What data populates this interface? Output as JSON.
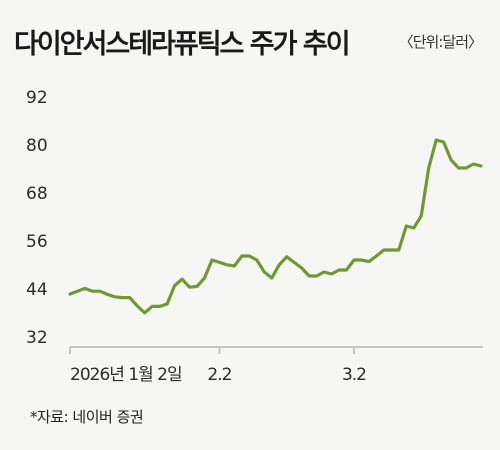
{
  "header": {
    "title": "다이안서스테라퓨틱스 주가 추이",
    "unit": "〈단위:달러〉"
  },
  "footer": {
    "source": "*자료: 네이버 증권"
  },
  "colors": {
    "line": "#6e9a34",
    "axis": "#c7c7c2",
    "text": "#2b2b2b"
  },
  "chart_data": {
    "type": "line",
    "title": "다이안서스테라퓨틱스 주가 추이",
    "unit": "〈단위:달러〉",
    "ylim": [
      32,
      92
    ],
    "yticks": [
      32,
      44,
      56,
      68,
      80,
      92
    ],
    "xtick_labels": [
      {
        "index": 0,
        "label": "2026년 1월 2일"
      },
      {
        "index": 20,
        "label": "2.2"
      },
      {
        "index": 38,
        "label": "3.2"
      }
    ],
    "grid": false,
    "series": [
      {
        "values": [
          42.5,
          43.2,
          43.9,
          43.2,
          43.2,
          42.4,
          41.8,
          41.6,
          41.6,
          39.5,
          37.8,
          39.4,
          39.4,
          40.0,
          44.6,
          46.2,
          44.2,
          44.4,
          46.5,
          51.0,
          50.4,
          49.8,
          49.5,
          52.0,
          52.0,
          51.0,
          48.0,
          46.5,
          49.8,
          51.8,
          50.4,
          49.0,
          47.0,
          47.0,
          48.0,
          47.5,
          48.5,
          48.5,
          51.0,
          51.0,
          50.6,
          52.0,
          53.5,
          53.5,
          53.5,
          59.5,
          59.0,
          62.0,
          74.0,
          81.0,
          80.5,
          76.0,
          74.0,
          74.0,
          75.0,
          74.5
        ]
      }
    ]
  }
}
